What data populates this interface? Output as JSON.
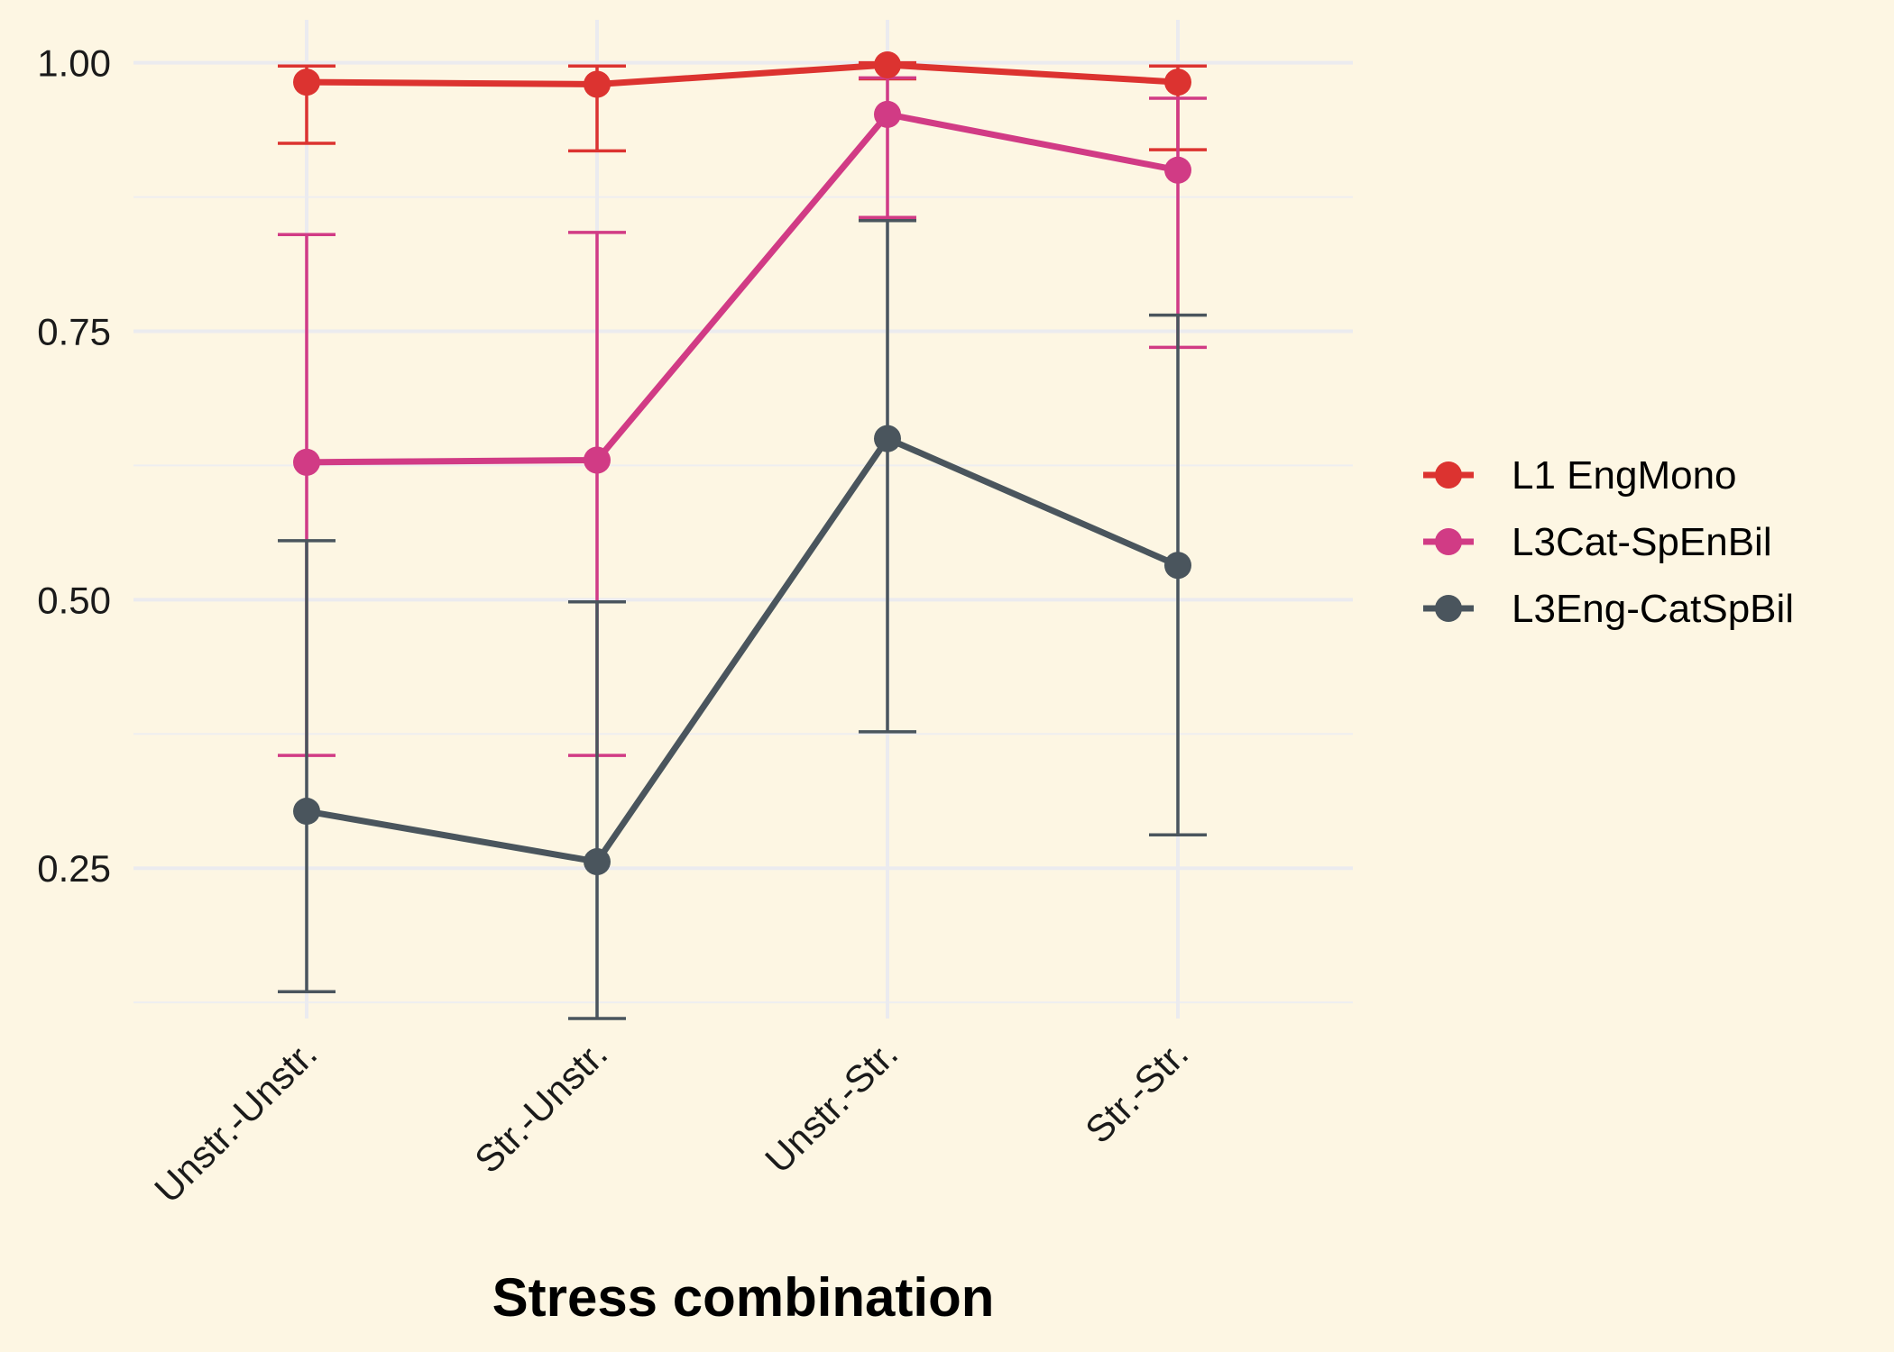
{
  "chart_data": {
    "type": "line",
    "title": "",
    "xlabel": "Stress combination",
    "ylabel": "",
    "categories": [
      "Unstr.-Unstr.",
      "Str.-Unstr.",
      "Unstr.-Str.",
      "Str.-Str."
    ],
    "ylim": [
      0.11,
      1.04
    ],
    "yticks": [
      0.25,
      0.5,
      0.75,
      1.0
    ],
    "ytick_labels": [
      "0.25",
      "0.50",
      "0.75",
      "1.00"
    ],
    "grid": true,
    "legend_position": "right",
    "series": [
      {
        "name": "L1 EngMono",
        "color": "#dc3330",
        "values": [
          0.982,
          0.98,
          0.998,
          0.982
        ],
        "lower": [
          0.925,
          0.918,
          0.985,
          0.919
        ],
        "upper": [
          0.997,
          0.997,
          1.0,
          0.997
        ]
      },
      {
        "name": "L3Cat-SpEnBil",
        "color": "#d13b85",
        "values": [
          0.628,
          0.63,
          0.952,
          0.9
        ],
        "lower": [
          0.355,
          0.355,
          0.856,
          0.735
        ],
        "upper": [
          0.84,
          0.842,
          0.986,
          0.967
        ]
      },
      {
        "name": "L3Eng-CatSpBil",
        "color": "#4a555d",
        "values": [
          0.303,
          0.256,
          0.65,
          0.532
        ],
        "lower": [
          0.135,
          0.11,
          0.377,
          0.281
        ],
        "upper": [
          0.555,
          0.498,
          0.853,
          0.765
        ]
      }
    ]
  }
}
